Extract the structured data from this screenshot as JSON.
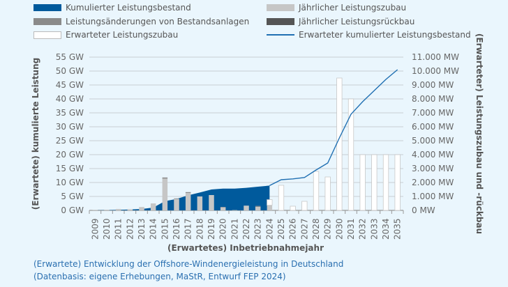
{
  "legend": [
    {
      "label": "Kumulierter Leistungsbestand",
      "color": "#005a9c"
    },
    {
      "label": "Jährlicher Leistungszubau",
      "color": "#c6c6c6"
    },
    {
      "label": "Leistungsänderungen von Bestandsanlagen",
      "color": "#8a8a8a"
    },
    {
      "label": "Jährlicher Leistungsrückbau",
      "color": "#555555"
    },
    {
      "label": "Erwarteter Leistungszubau",
      "color": "#ffffff"
    },
    {
      "label": "Erwarteter kumulierter Leistungsbestand",
      "color": "#1f6fb2"
    }
  ],
  "caption": {
    "line1": "(Erwartete) Entwicklung der Offshore-Windenergieleistung in Deutschland",
    "line2": "(Datenbasis: eigene Erhebungen, MaStR, Entwurf FEP 2024)"
  },
  "chart_data": {
    "type": "bar",
    "xlabel": "(Erwartetes) Inbetriebnahmejahr",
    "ylabel_left": "(Erwartete) kumulierte Leistung",
    "ylabel_right": "(Erwarteter) Leistungszubau und -rückbau",
    "ylim_left": [
      0,
      55
    ],
    "ylim_right": [
      0,
      11000
    ],
    "yticks_left": [
      "0 GW",
      "5 GW",
      "10 GW",
      "15 GW",
      "20 GW",
      "25 GW",
      "30 GW",
      "35 GW",
      "40 GW",
      "45 GW",
      "50 GW",
      "55 GW"
    ],
    "yticks_right": [
      "0 MW",
      "1.000 MW",
      "2.000 MW",
      "3.000 MW",
      "4.000 MW",
      "5.000 MW",
      "6.000 MW",
      "7.000 MW",
      "8.000 MW",
      "9.000 MW",
      "10.000 MW",
      "11.000 MW"
    ],
    "grid": true,
    "legend_position": "top",
    "categories": [
      "2009",
      "2010",
      "2011",
      "2012",
      "2013",
      "2014",
      "2015",
      "2016",
      "2017",
      "2018",
      "2019",
      "2020",
      "2021",
      "2022",
      "2023",
      "2024",
      "2025",
      "2026",
      "2027",
      "2028",
      "2029",
      "2030",
      "2031",
      "2032",
      "2033",
      "2034",
      "2035"
    ],
    "series": [
      {
        "name": "Kumulierter Leistungsbestand",
        "unit": "GW",
        "type": "area",
        "values": [
          0.03,
          0.08,
          0.2,
          0.3,
          0.5,
          1.0,
          3.3,
          4.1,
          5.4,
          6.4,
          7.5,
          7.8,
          7.8,
          8.1,
          8.5,
          8.9,
          null,
          null,
          null,
          null,
          null,
          null,
          null,
          null,
          null,
          null,
          null
        ]
      },
      {
        "name": "Jährlicher Leistungszubau",
        "unit": "MW",
        "type": "bar",
        "values": [
          30,
          50,
          100,
          80,
          240,
          500,
          2280,
          820,
          1250,
          1000,
          1100,
          220,
          20,
          340,
          260,
          370,
          0,
          0,
          0,
          0,
          0,
          0,
          0,
          0,
          0,
          0,
          0
        ]
      },
      {
        "name": "Leistungsänderungen von Bestandsanlagen",
        "unit": "MW",
        "type": "bar",
        "values": [
          0,
          0,
          0,
          0,
          0,
          0,
          80,
          40,
          60,
          0,
          0,
          30,
          0,
          0,
          60,
          0,
          0,
          0,
          0,
          0,
          0,
          0,
          0,
          0,
          0,
          0,
          0
        ]
      },
      {
        "name": "Jährlicher Leistungsrückbau",
        "unit": "MW",
        "type": "bar",
        "values": [
          0,
          0,
          0,
          0,
          0,
          0,
          0,
          0,
          0,
          0,
          0,
          0,
          0,
          0,
          0,
          0,
          0,
          0,
          0,
          0,
          0,
          0,
          0,
          0,
          0,
          0,
          0
        ]
      },
      {
        "name": "Erwarteter Leistungszubau",
        "unit": "MW",
        "type": "bar",
        "values": [
          0,
          0,
          0,
          0,
          0,
          0,
          0,
          0,
          0,
          0,
          0,
          0,
          0,
          0,
          0,
          400,
          1800,
          300,
          650,
          2800,
          2400,
          9500,
          8000,
          4000,
          4000,
          4000,
          4000
        ]
      },
      {
        "name": "Erwarteter kumulierter Leistungsbestand",
        "unit": "GW",
        "type": "line",
        "values": [
          null,
          null,
          null,
          null,
          null,
          null,
          null,
          null,
          null,
          null,
          null,
          null,
          null,
          null,
          null,
          8.9,
          11.0,
          11.3,
          11.8,
          14.5,
          17.0,
          26.0,
          34.5,
          39.0,
          43.0,
          47.0,
          50.5
        ]
      }
    ]
  }
}
